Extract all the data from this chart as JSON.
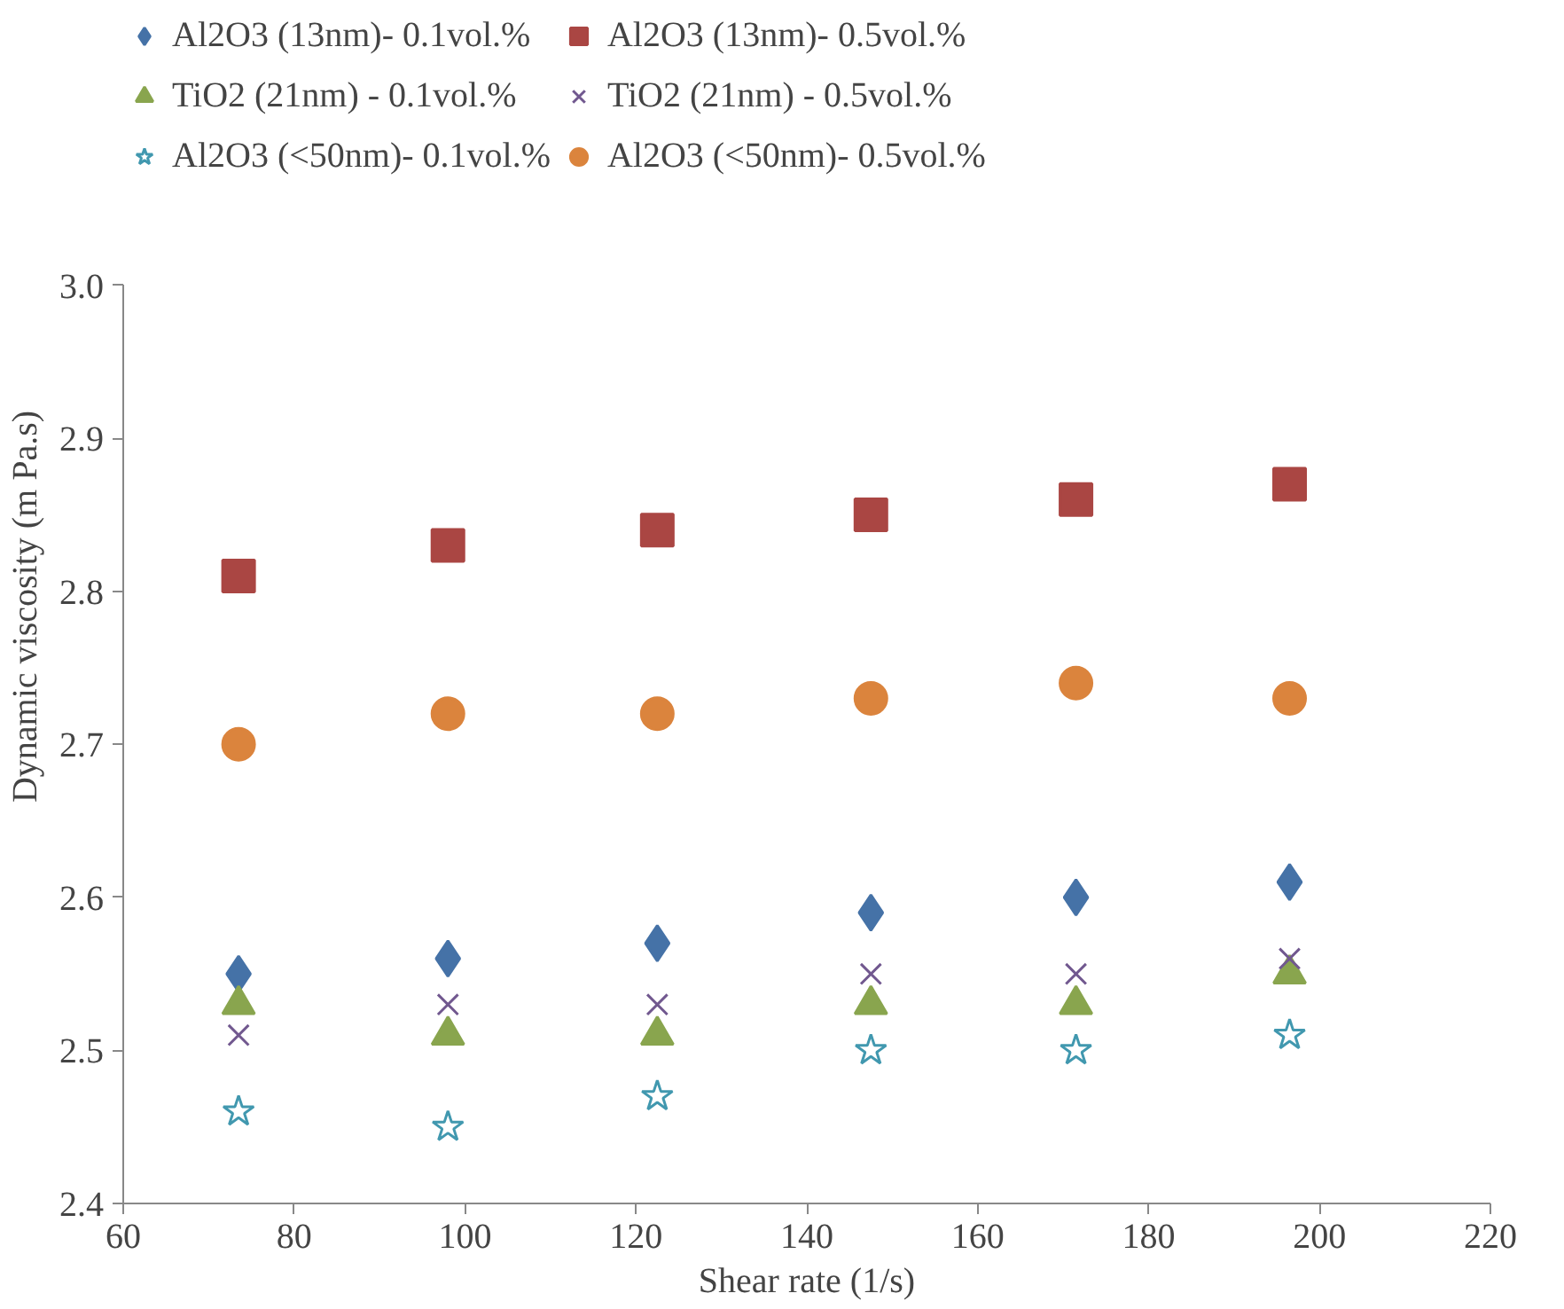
{
  "chart_data": {
    "type": "scatter",
    "xlabel": "Shear rate (1/s)",
    "ylabel": "Dynamic viscosity (m Pa.s)",
    "x": [
      73.5,
      98,
      122.5,
      147.5,
      171.5,
      196.5
    ],
    "xlim": [
      60,
      220
    ],
    "xticks": [
      60,
      80,
      100,
      120,
      140,
      160,
      180,
      200,
      220
    ],
    "ylim": [
      2.4,
      3.0
    ],
    "yticks": [
      {
        "value": 2.4,
        "label": "2.4"
      },
      {
        "value": 2.5,
        "label": "2.5"
      },
      {
        "value": 2.6,
        "label": "2.6"
      },
      {
        "value": 2.7,
        "label": "2.7"
      },
      {
        "value": 2.8,
        "label": "2.8"
      },
      {
        "value": 2.9,
        "label": "2.9"
      },
      {
        "value": 3.0,
        "label": "3.0"
      }
    ],
    "grid": false,
    "legend": "top",
    "series": [
      {
        "name": "Al2O3 (13nm)- 0.1vol.%",
        "color": "#4572a7",
        "marker": "diamond",
        "values": [
          2.55,
          2.56,
          2.57,
          2.59,
          2.6,
          2.61
        ]
      },
      {
        "name": "Al2O3 (13nm)- 0.5vol.%",
        "color": "#aa4643",
        "marker": "square",
        "values": [
          2.81,
          2.83,
          2.84,
          2.85,
          2.86,
          2.87
        ]
      },
      {
        "name": "TiO2 (21nm) - 0.1vol.%",
        "color": "#89a54e",
        "marker": "triangle",
        "values": [
          2.53,
          2.51,
          2.51,
          2.53,
          2.53,
          2.55
        ]
      },
      {
        "name": "TiO2 (21nm) - 0.5vol.%",
        "color": "#71588f",
        "marker": "cross",
        "values": [
          2.51,
          2.53,
          2.53,
          2.55,
          2.55,
          2.56
        ]
      },
      {
        "name": "Al2O3 (<50nm)- 0.1vol.%",
        "color": "#4198af",
        "marker": "star",
        "values": [
          2.46,
          2.45,
          2.47,
          2.5,
          2.5,
          2.51
        ]
      },
      {
        "name": "Al2O3 (<50nm)- 0.5vol.%",
        "color": "#db843d",
        "marker": "circle",
        "values": [
          2.7,
          2.72,
          2.72,
          2.73,
          2.74,
          2.73
        ]
      }
    ]
  }
}
